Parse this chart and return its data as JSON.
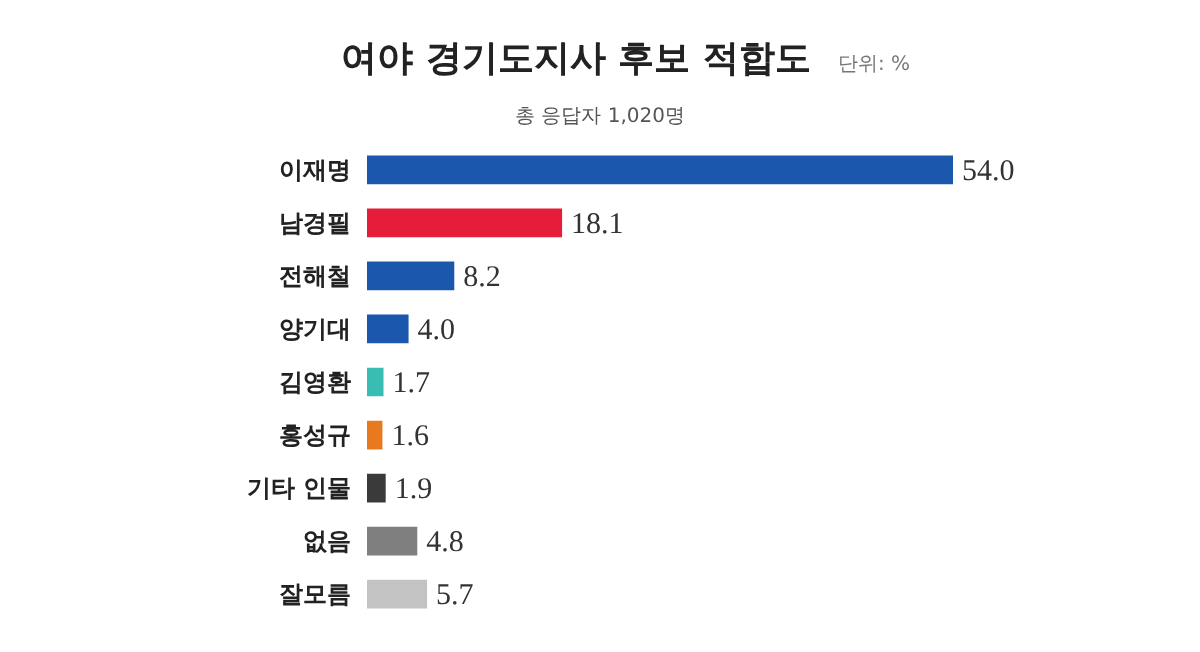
{
  "chart_data": {
    "type": "bar",
    "orientation": "horizontal",
    "title": "여야 경기도지사 후보 적합도",
    "subtitle": "총 응답자 1,020명",
    "annotations": [
      "단위: %"
    ],
    "categories": [
      "이재명",
      "남경필",
      "전해철",
      "양기대",
      "김영환",
      "홍성규",
      "기타 인물",
      "없음",
      "잘모름"
    ],
    "values": [
      54.0,
      18.1,
      8.2,
      4.0,
      1.7,
      1.6,
      1.9,
      4.8,
      5.7
    ],
    "colors": [
      "#1b57ad",
      "#e51d3b",
      "#1b57ad",
      "#1b57ad",
      "#39bdb3",
      "#e8791e",
      "#3a3a3a",
      "#7f7f7f",
      "#c3c3c3"
    ],
    "value_labels": [
      "54.0",
      "18.1",
      "8.2",
      "4.0",
      "1.7",
      "1.6",
      "1.9",
      "4.8",
      "5.7"
    ]
  }
}
